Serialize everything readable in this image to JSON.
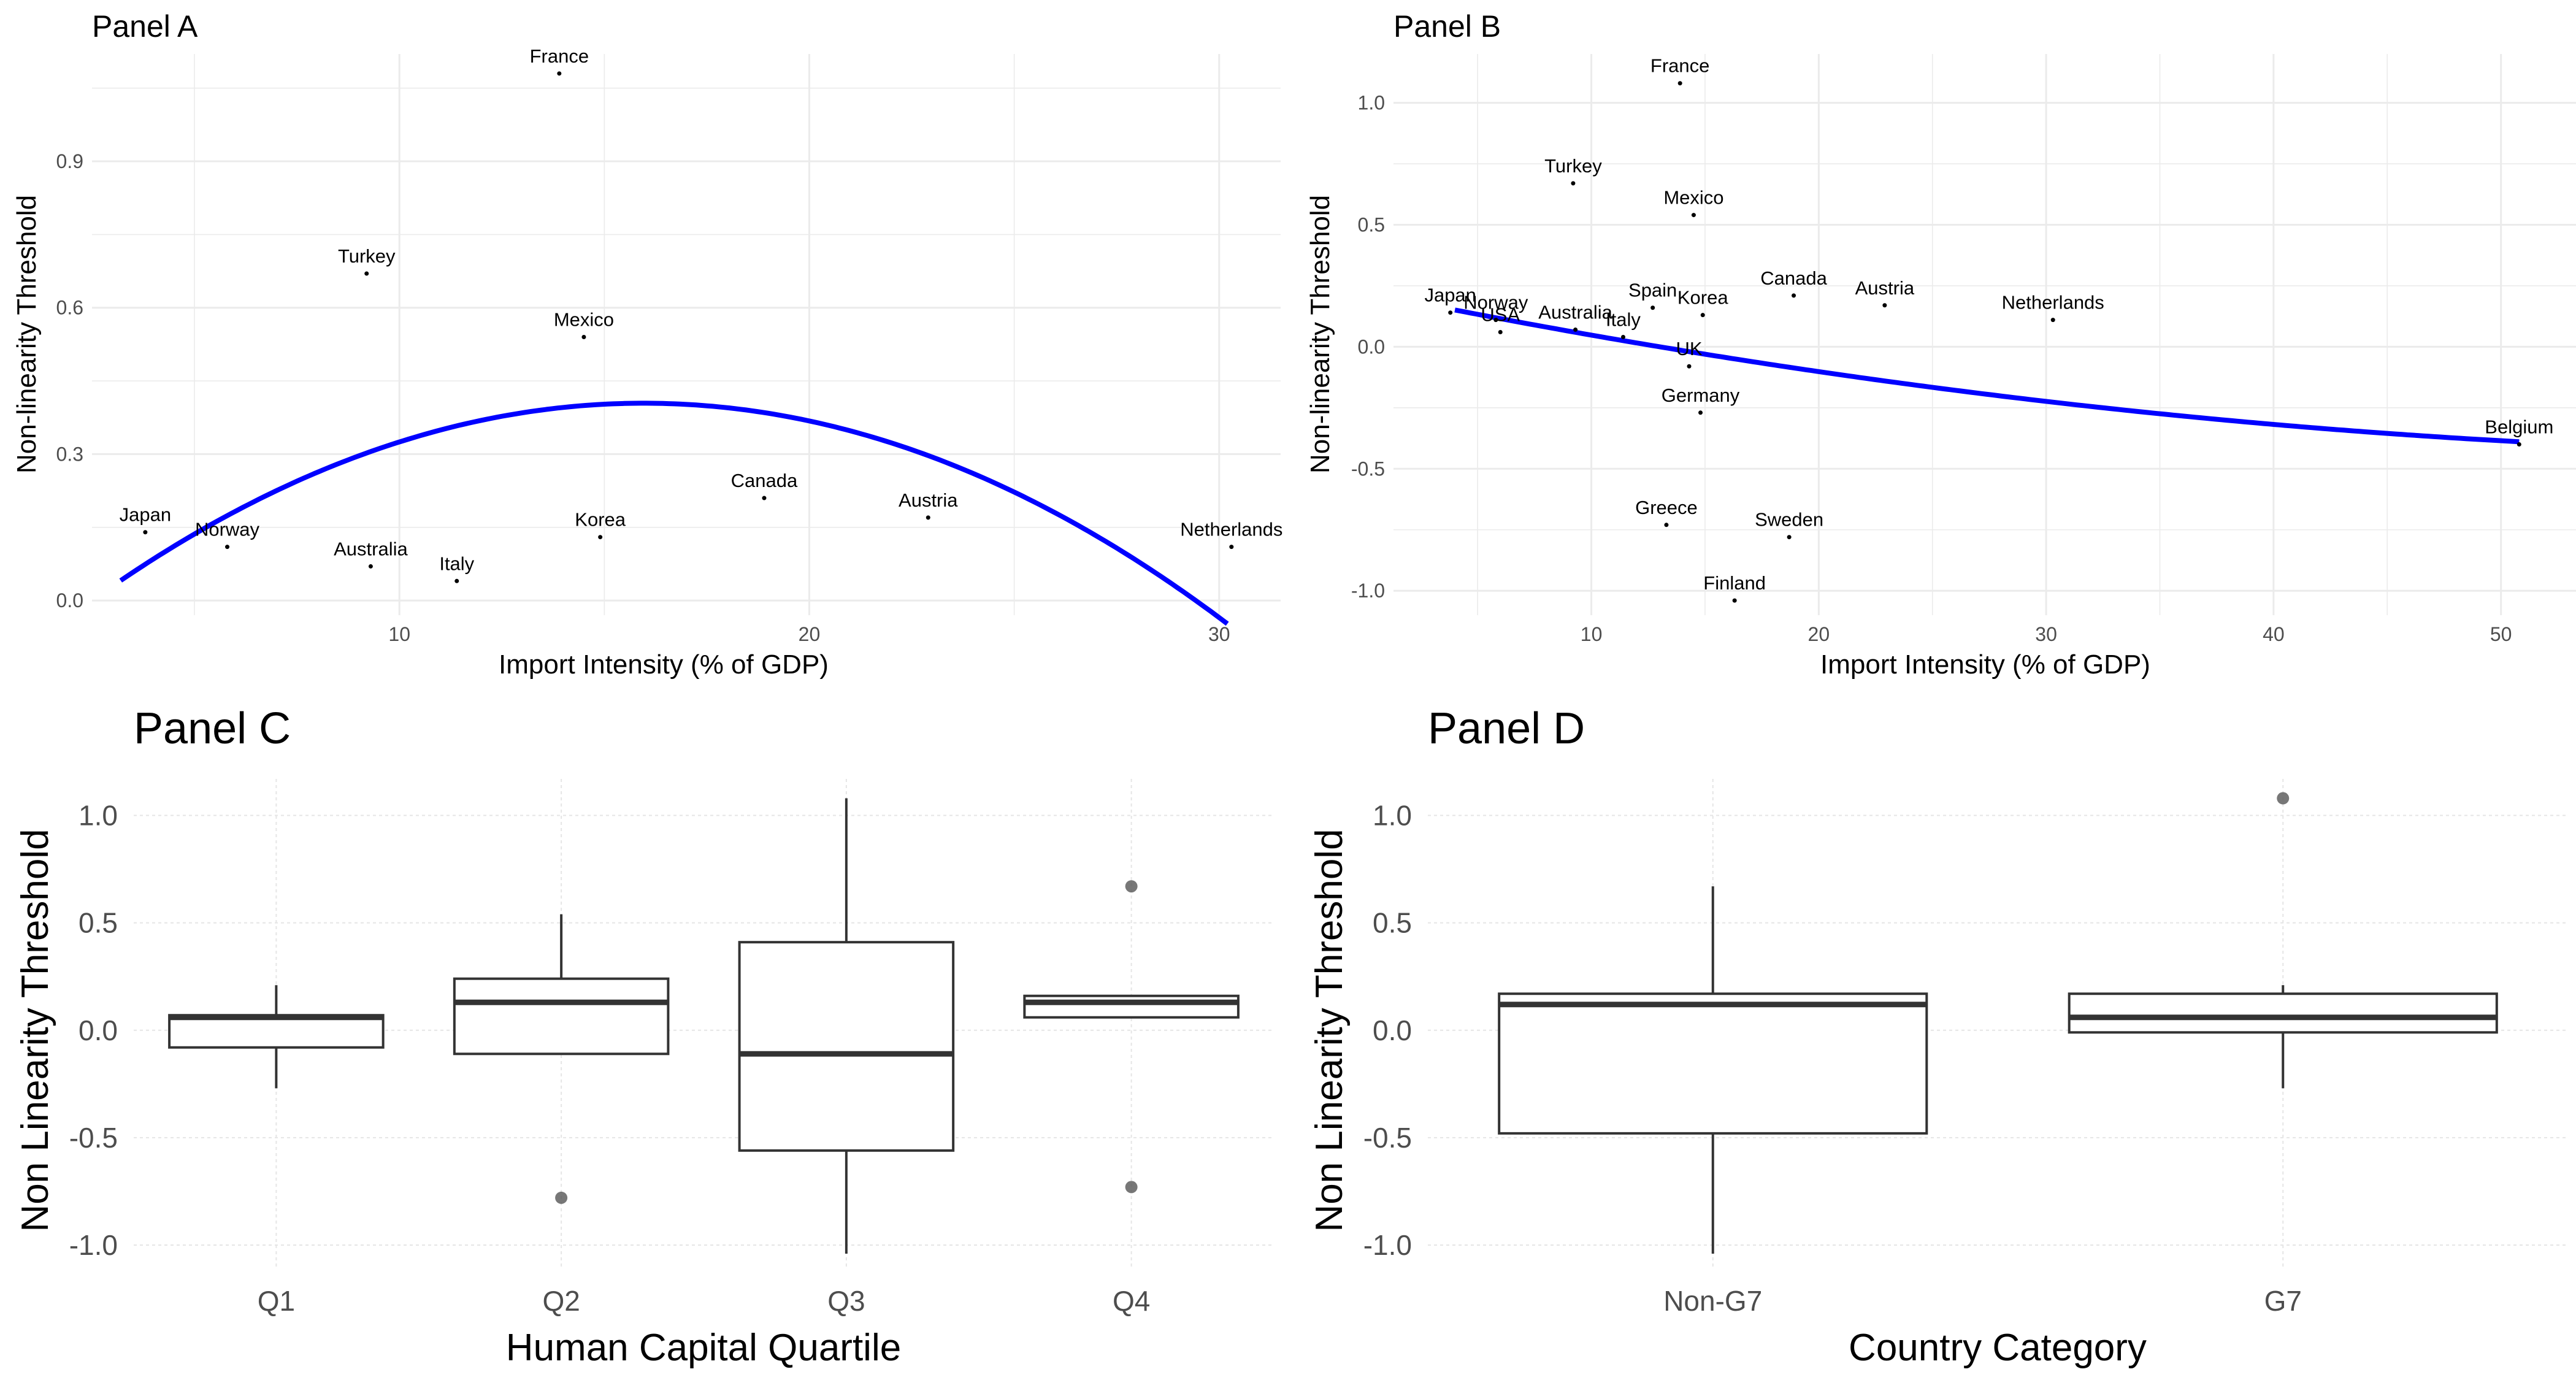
{
  "chart_data": [
    {
      "panel": "A",
      "type": "scatter",
      "title": "Panel A",
      "xlabel": "Import Intensity (% of GDP)",
      "ylabel": "Non-linearity Threshold",
      "xlim": [
        2.5,
        31.5
      ],
      "ylim": [
        -0.03,
        1.12
      ],
      "xticks": [
        10,
        20,
        30
      ],
      "yticks": [
        0.0,
        0.3,
        0.6,
        0.9
      ],
      "ytick_labels": [
        "0.0",
        "0.3",
        "0.6",
        "0.9"
      ],
      "grid": true,
      "points": [
        {
          "label": "France",
          "x": 13.9,
          "y": 1.08
        },
        {
          "label": "Turkey",
          "x": 9.2,
          "y": 0.67
        },
        {
          "label": "Mexico",
          "x": 14.5,
          "y": 0.54
        },
        {
          "label": "Canada",
          "x": 18.9,
          "y": 0.21
        },
        {
          "label": "Austria",
          "x": 22.9,
          "y": 0.17
        },
        {
          "label": "Netherlands",
          "x": 30.3,
          "y": 0.11
        },
        {
          "label": "Korea",
          "x": 14.9,
          "y": 0.13
        },
        {
          "label": "Japan",
          "x": 3.8,
          "y": 0.14
        },
        {
          "label": "Norway",
          "x": 5.8,
          "y": 0.11
        },
        {
          "label": "Australia",
          "x": 9.3,
          "y": 0.07
        },
        {
          "label": "Italy",
          "x": 11.4,
          "y": 0.04
        }
      ],
      "fit": {
        "color": "#0000ff",
        "x_range": [
          3.2,
          30.2
        ],
        "a": -0.00223,
        "b": 0.0712,
        "c": -0.164
      }
    },
    {
      "panel": "B",
      "type": "scatter",
      "title": "Panel B",
      "xlabel": "Import Intensity (% of GDP)",
      "ylabel": "Non-linearity Threshold",
      "xlim": [
        1.3,
        53.3
      ],
      "ylim": [
        -1.1,
        1.2
      ],
      "xticks": [
        10,
        20,
        30,
        40,
        50
      ],
      "yticks": [
        -1.0,
        -0.5,
        0.0,
        0.5,
        1.0
      ],
      "ytick_labels": [
        "-1.0",
        "-0.5",
        "0.0",
        "0.5",
        "1.0"
      ],
      "grid": true,
      "points": [
        {
          "label": "France",
          "x": 13.9,
          "y": 1.08
        },
        {
          "label": "Turkey",
          "x": 9.2,
          "y": 0.67
        },
        {
          "label": "Mexico",
          "x": 14.5,
          "y": 0.54
        },
        {
          "label": "Canada",
          "x": 18.9,
          "y": 0.21
        },
        {
          "label": "Austria",
          "x": 22.9,
          "y": 0.17
        },
        {
          "label": "Netherlands",
          "x": 30.3,
          "y": 0.11
        },
        {
          "label": "Spain",
          "x": 12.7,
          "y": 0.16
        },
        {
          "label": "Korea",
          "x": 14.9,
          "y": 0.13
        },
        {
          "label": "Japan",
          "x": 3.8,
          "y": 0.14
        },
        {
          "label": "Norway",
          "x": 5.8,
          "y": 0.11
        },
        {
          "label": "USA",
          "x": 6.0,
          "y": 0.06
        },
        {
          "label": "Australia",
          "x": 9.3,
          "y": 0.07
        },
        {
          "label": "Italy",
          "x": 11.4,
          "y": 0.04
        },
        {
          "label": "UK",
          "x": 14.3,
          "y": -0.08
        },
        {
          "label": "Germany",
          "x": 14.8,
          "y": -0.27
        },
        {
          "label": "Greece",
          "x": 13.3,
          "y": -0.73
        },
        {
          "label": "Sweden",
          "x": 18.7,
          "y": -0.78
        },
        {
          "label": "Finland",
          "x": 16.3,
          "y": -1.04
        },
        {
          "label": "Belgium",
          "x": 50.8,
          "y": -0.4
        }
      ],
      "fit": {
        "color": "#0000ff",
        "x_range": [
          4.0,
          50.8
        ],
        "a": 0.000138,
        "b": -0.0191,
        "c": 0.225
      }
    },
    {
      "panel": "C",
      "type": "box",
      "title": "Panel C",
      "xlabel": "Human Capital Quartile",
      "ylabel": "Non Linearity Threshold",
      "ylim": [
        -1.1,
        1.17
      ],
      "yticks": [
        -1.0,
        -0.5,
        0.0,
        0.5,
        1.0
      ],
      "ytick_labels": [
        "-1.0",
        "-0.5",
        "0.0",
        "0.5",
        "1.0"
      ],
      "grid": true,
      "categories": [
        "Q1",
        "Q2",
        "Q3",
        "Q4"
      ],
      "boxes": [
        {
          "category": "Q1",
          "lower_whisker": -0.27,
          "q1": -0.08,
          "median": 0.06,
          "q3": 0.07,
          "upper_whisker": 0.21,
          "outliers": []
        },
        {
          "category": "Q2",
          "lower_whisker": -0.11,
          "q1": -0.11,
          "median": 0.13,
          "q3": 0.24,
          "upper_whisker": 0.54,
          "outliers": [
            -0.78
          ]
        },
        {
          "category": "Q3",
          "lower_whisker": -1.04,
          "q1": -0.56,
          "median": -0.11,
          "q3": 0.41,
          "upper_whisker": 1.08,
          "outliers": []
        },
        {
          "category": "Q4",
          "lower_whisker": 0.06,
          "q1": 0.06,
          "median": 0.13,
          "q3": 0.16,
          "upper_whisker": 0.16,
          "outliers": [
            0.67,
            -0.73
          ]
        }
      ]
    },
    {
      "panel": "D",
      "type": "box",
      "title": "Panel D",
      "xlabel": "Country Category",
      "ylabel": "Non Linearity Threshold",
      "ylim": [
        -1.1,
        1.17
      ],
      "yticks": [
        -1.0,
        -0.5,
        0.0,
        0.5,
        1.0
      ],
      "ytick_labels": [
        "-1.0",
        "-0.5",
        "0.0",
        "0.5",
        "1.0"
      ],
      "grid": true,
      "categories": [
        "Non-G7",
        "G7"
      ],
      "boxes": [
        {
          "category": "Non-G7",
          "lower_whisker": -1.04,
          "q1": -0.48,
          "median": 0.12,
          "q3": 0.17,
          "upper_whisker": 0.67,
          "outliers": []
        },
        {
          "category": "G7",
          "lower_whisker": -0.27,
          "q1": -0.01,
          "median": 0.06,
          "q3": 0.17,
          "upper_whisker": 0.21,
          "outliers": [
            1.08
          ]
        }
      ]
    }
  ]
}
